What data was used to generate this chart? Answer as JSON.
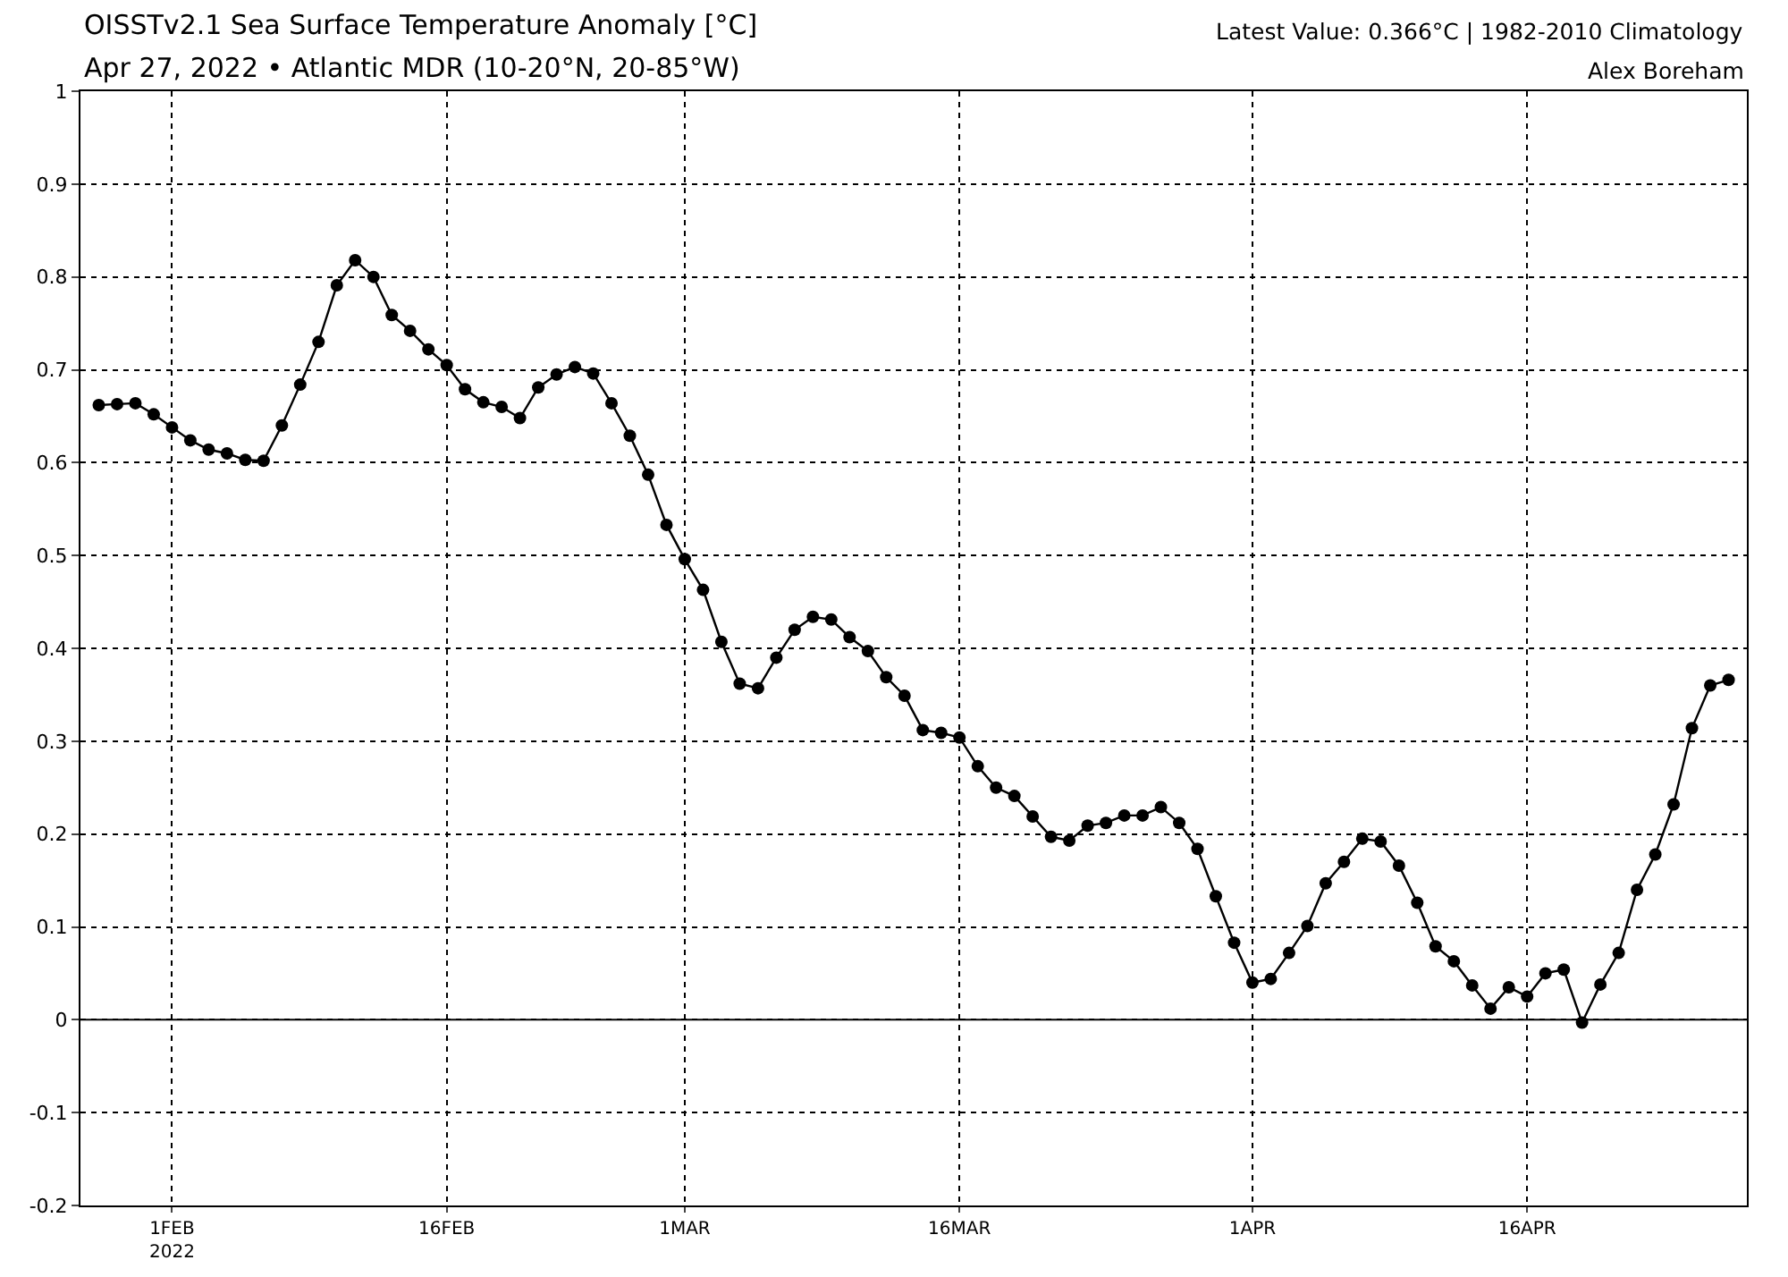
{
  "chart_data": {
    "type": "line",
    "title": "OISSTv2.1 Sea Surface Temperature Anomaly [°C]",
    "subtitle": "Apr 27, 2022 • Atlantic MDR (10-20°N, 20-85°W)",
    "annotations": [
      "Latest Value: 0.366°C | 1982-2010 Climatology",
      "Alex Boreham"
    ],
    "x": [
      "2022-01-28",
      "2022-01-29",
      "2022-01-30",
      "2022-01-31",
      "2022-02-01",
      "2022-02-02",
      "2022-02-03",
      "2022-02-04",
      "2022-02-05",
      "2022-02-06",
      "2022-02-07",
      "2022-02-08",
      "2022-02-09",
      "2022-02-10",
      "2022-02-11",
      "2022-02-12",
      "2022-02-13",
      "2022-02-14",
      "2022-02-15",
      "2022-02-16",
      "2022-02-17",
      "2022-02-18",
      "2022-02-19",
      "2022-02-20",
      "2022-02-21",
      "2022-02-22",
      "2022-02-23",
      "2022-02-24",
      "2022-02-25",
      "2022-02-26",
      "2022-02-27",
      "2022-02-28",
      "2022-03-01",
      "2022-03-02",
      "2022-03-03",
      "2022-03-04",
      "2022-03-05",
      "2022-03-06",
      "2022-03-07",
      "2022-03-08",
      "2022-03-09",
      "2022-03-10",
      "2022-03-11",
      "2022-03-12",
      "2022-03-13",
      "2022-03-14",
      "2022-03-15",
      "2022-03-16",
      "2022-03-17",
      "2022-03-18",
      "2022-03-19",
      "2022-03-20",
      "2022-03-21",
      "2022-03-22",
      "2022-03-23",
      "2022-03-24",
      "2022-03-25",
      "2022-03-26",
      "2022-03-27",
      "2022-03-28",
      "2022-03-29",
      "2022-03-30",
      "2022-03-31",
      "2022-04-01",
      "2022-04-02",
      "2022-04-03",
      "2022-04-04",
      "2022-04-05",
      "2022-04-06",
      "2022-04-07",
      "2022-04-08",
      "2022-04-09",
      "2022-04-10",
      "2022-04-11",
      "2022-04-12",
      "2022-04-13",
      "2022-04-14",
      "2022-04-15",
      "2022-04-16",
      "2022-04-17",
      "2022-04-18",
      "2022-04-19",
      "2022-04-20",
      "2022-04-21",
      "2022-04-22",
      "2022-04-23",
      "2022-04-24",
      "2022-04-25",
      "2022-04-26",
      "2022-04-27"
    ],
    "series": [
      {
        "color": "#000000",
        "values": [
          0.662,
          0.663,
          0.664,
          0.652,
          0.638,
          0.624,
          0.614,
          0.61,
          0.603,
          0.602,
          0.64,
          0.684,
          0.73,
          0.791,
          0.818,
          0.8,
          0.759,
          0.742,
          0.722,
          0.705,
          0.679,
          0.665,
          0.66,
          0.648,
          0.681,
          0.695,
          0.703,
          0.696,
          0.664,
          0.629,
          0.587,
          0.533,
          0.496,
          0.463,
          0.407,
          0.362,
          0.357,
          0.39,
          0.42,
          0.434,
          0.431,
          0.412,
          0.397,
          0.369,
          0.349,
          0.312,
          0.309,
          0.304,
          0.273,
          0.25,
          0.241,
          0.219,
          0.197,
          0.193,
          0.209,
          0.212,
          0.22,
          0.22,
          0.229,
          0.212,
          0.184,
          0.133,
          0.083,
          0.04,
          0.044,
          0.072,
          0.101,
          0.147,
          0.17,
          0.195,
          0.192,
          0.166,
          0.126,
          0.079,
          0.063,
          0.037,
          0.012,
          0.035,
          0.025,
          0.05,
          0.054,
          -0.003,
          0.038,
          0.072,
          0.14,
          0.178,
          0.232,
          0.314,
          0.36,
          0.366
        ]
      }
    ],
    "xlim": [
      "2022-01-27",
      "2022-04-28"
    ],
    "xticks": [
      {
        "value": "2022-02-01",
        "label": "1FEB\n2022"
      },
      {
        "value": "2022-02-16",
        "label": "16FEB"
      },
      {
        "value": "2022-03-01",
        "label": "1MAR"
      },
      {
        "value": "2022-03-16",
        "label": "16MAR"
      },
      {
        "value": "2022-04-01",
        "label": "1APR"
      },
      {
        "value": "2022-04-16",
        "label": "16APR"
      }
    ],
    "ylim": [
      -0.2,
      1
    ],
    "yticks": [
      -0.2,
      -0.1,
      0,
      0.1,
      0.2,
      0.3,
      0.4,
      0.5,
      0.6,
      0.7,
      0.8,
      0.9,
      1
    ],
    "ref_lines": [
      {
        "axis": "y",
        "value": 0,
        "color": "#000000",
        "line_style": "solid"
      }
    ],
    "grid": true,
    "marker": "circle",
    "line_style": "solid"
  }
}
